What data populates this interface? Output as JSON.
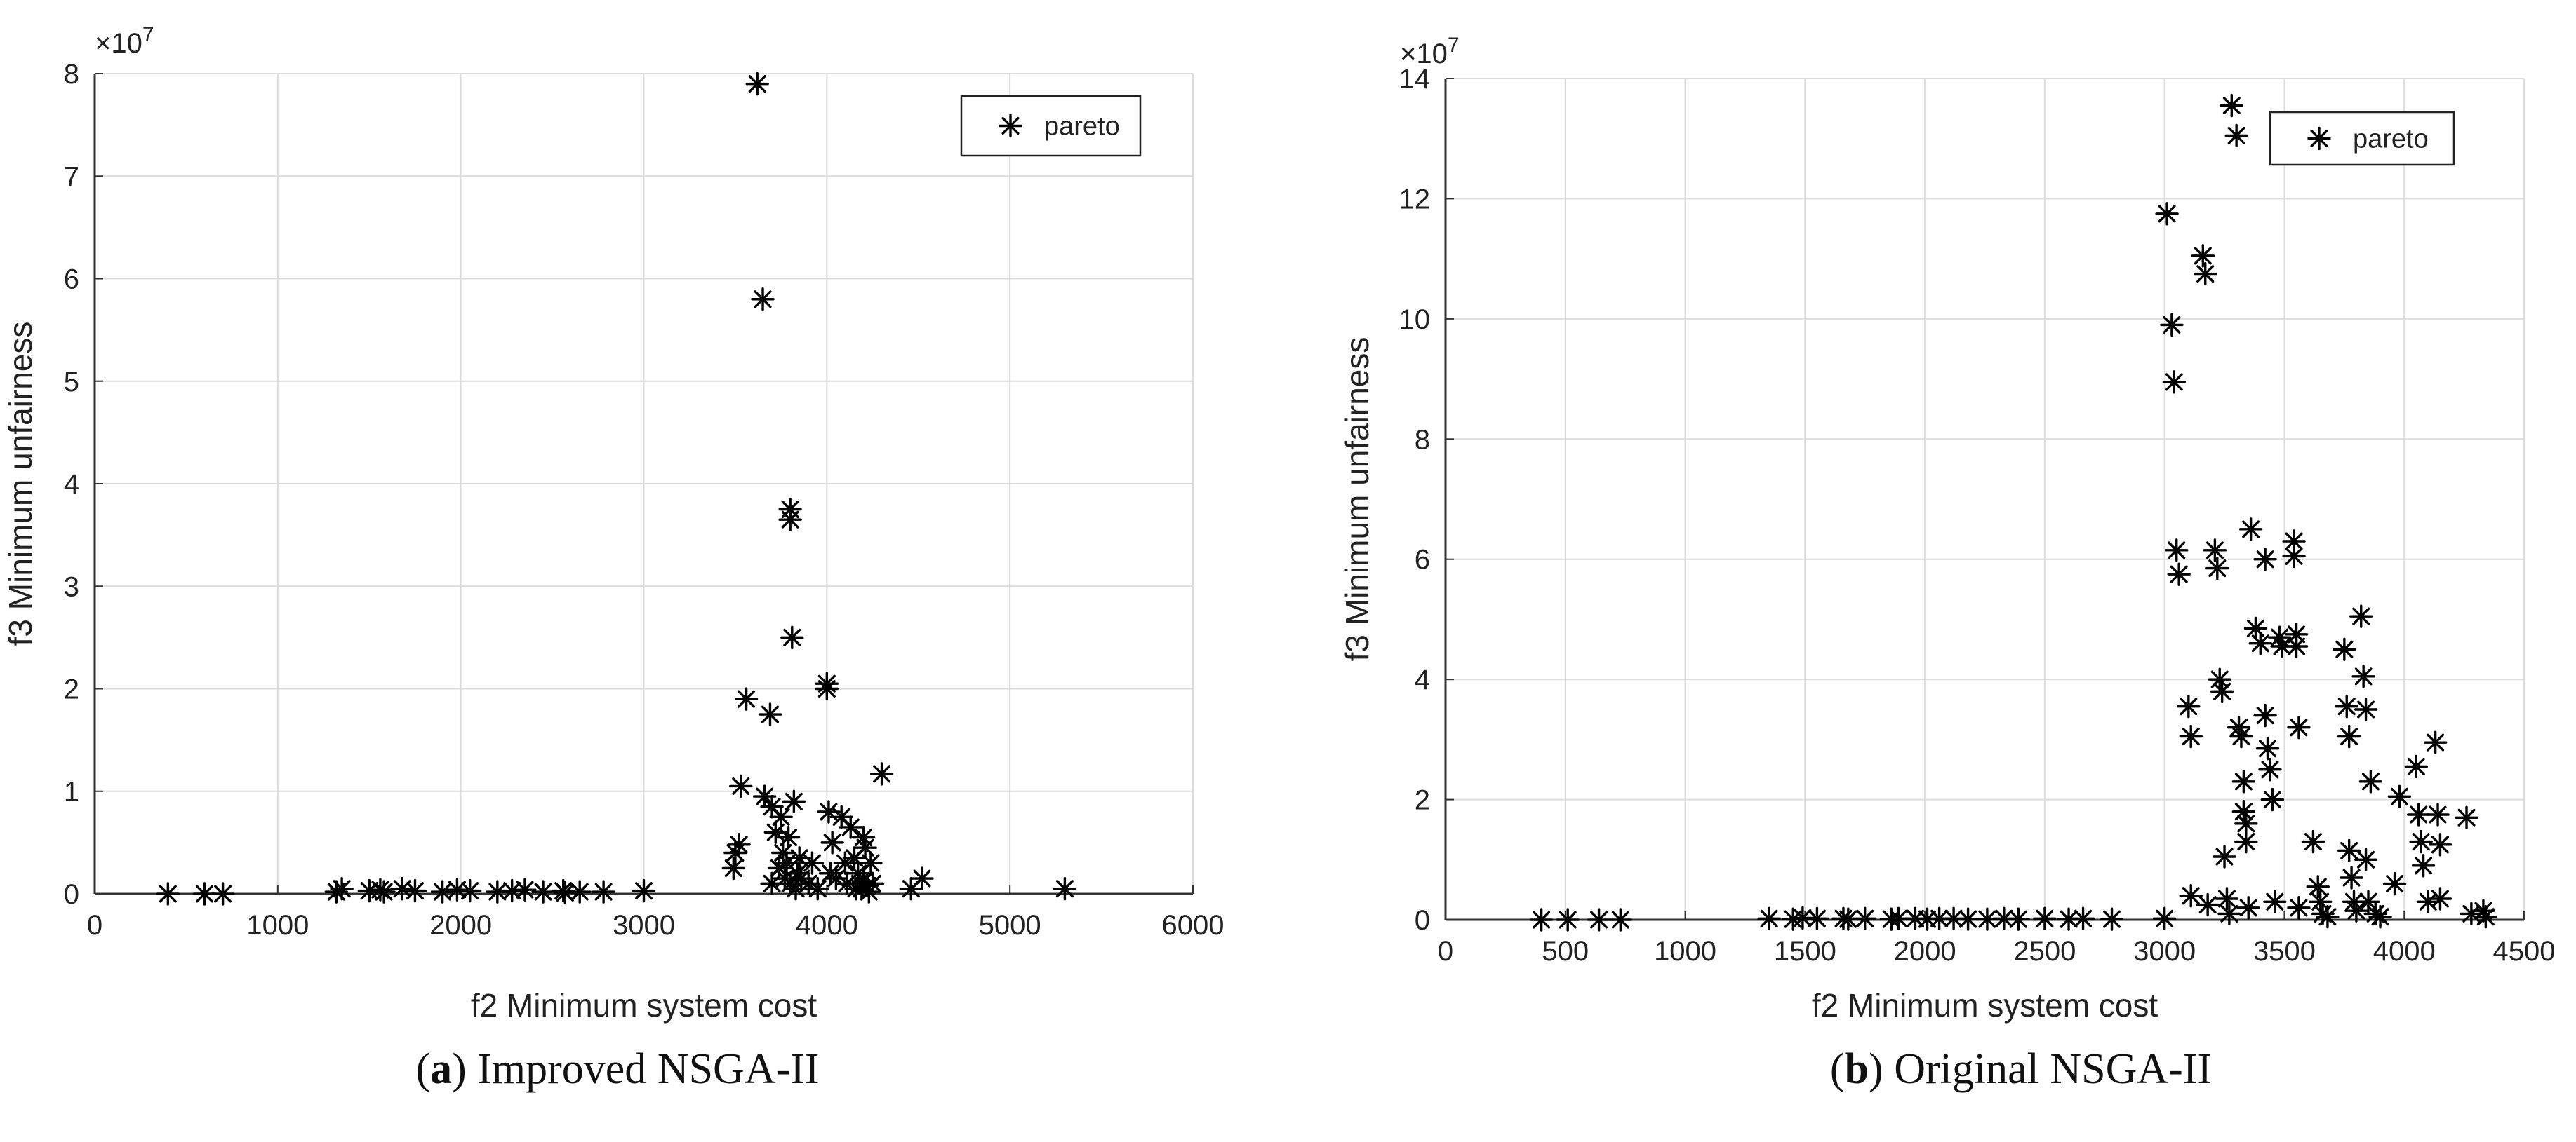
{
  "colors": {
    "grid": "#dcdcdc",
    "axis": "#333333",
    "marker": "#000000",
    "background": "#ffffff"
  },
  "captions": [
    {
      "letter": "a",
      "text": "Improved NSGA-II",
      "open": "(",
      "close": ")"
    },
    {
      "letter": "b",
      "text": "Original NSGA-II",
      "open": "(",
      "close": ")"
    }
  ],
  "chart_data": [
    {
      "type": "scatter",
      "title": "",
      "xlabel": "f2 Minimum system cost",
      "ylabel": "f3 Minimum unfairness",
      "y_multiplier_label": "×10",
      "y_multiplier_exponent": "7",
      "xlim": [
        0,
        6000
      ],
      "ylim": [
        0,
        8
      ],
      "xticks": [
        0,
        1000,
        2000,
        3000,
        4000,
        5000,
        6000
      ],
      "yticks": [
        0,
        1,
        2,
        3,
        4,
        5,
        6,
        7,
        8
      ],
      "grid": true,
      "legend": {
        "label": "pareto",
        "position": "top-right",
        "marker": "*"
      },
      "series": [
        {
          "name": "pareto",
          "marker": "*",
          "x": [
            400,
            600,
            700,
            1320,
            1350,
            1500,
            1560,
            1580,
            1680,
            1750,
            1900,
            1980,
            2050,
            2200,
            2280,
            2350,
            2450,
            2560,
            2570,
            2650,
            2780,
            3000,
            3490,
            3500,
            3520,
            3530,
            3560,
            3620,
            3650,
            3660,
            3690,
            3700,
            3700,
            3720,
            3740,
            3750,
            3760,
            3770,
            3780,
            3790,
            3800,
            3800,
            3800,
            3810,
            3820,
            3830,
            3840,
            3850,
            3860,
            3900,
            3920,
            3950,
            4000,
            4000,
            4010,
            4020,
            4030,
            4050,
            4080,
            4100,
            4110,
            4130,
            4150,
            4160,
            4170,
            4180,
            4190,
            4200,
            4200,
            4210,
            4220,
            4230,
            4240,
            4250,
            4300,
            4460,
            4520,
            5300
          ],
          "y": [
            0,
            0,
            0,
            0.02,
            0.05,
            0.03,
            0.04,
            0.02,
            0.05,
            0.03,
            0.02,
            0.04,
            0.03,
            0.02,
            0.03,
            0.04,
            0.02,
            0.03,
            0.01,
            0.02,
            0.02,
            0.03,
            0.25,
            0.4,
            0.48,
            1.05,
            1.9,
            7.9,
            5.8,
            0.95,
            1.75,
            0.85,
            0.1,
            0.6,
            0.25,
            0.75,
            0.4,
            0.15,
            0.3,
            0.55,
            3.75,
            3.65,
            0.1,
            2.5,
            0.9,
            0.05,
            0.2,
            0.35,
            0.15,
            0.1,
            0.3,
            0.05,
            2.05,
            2.0,
            0.8,
            0.2,
            0.5,
            0.15,
            0.75,
            0.3,
            0.1,
            0.65,
            0.35,
            0.05,
            0.2,
            0.1,
            0.05,
            0.55,
            0.12,
            0.45,
            0.08,
            0.02,
            0.3,
            0.1,
            1.17,
            0.05,
            0.15,
            0.05
          ]
        }
      ]
    },
    {
      "type": "scatter",
      "title": "",
      "xlabel": "f2 Minimum system cost",
      "ylabel": "f3 Minimum unfairness",
      "y_multiplier_label": "×10",
      "y_multiplier_exponent": "7",
      "xlim": [
        0,
        4500
      ],
      "ylim": [
        0,
        14
      ],
      "xticks": [
        0,
        500,
        1000,
        1500,
        2000,
        2500,
        3000,
        3500,
        4000,
        4500
      ],
      "yticks": [
        0,
        2,
        4,
        6,
        8,
        10,
        12,
        14
      ],
      "grid": true,
      "legend": {
        "label": "pareto",
        "position": "top-right",
        "marker": "*"
      },
      "series": [
        {
          "name": "pareto",
          "marker": "*",
          "x": [
            400,
            510,
            640,
            730,
            1350,
            1450,
            1490,
            1550,
            1660,
            1680,
            1750,
            1860,
            1890,
            1960,
            2010,
            2060,
            2120,
            2180,
            2260,
            2330,
            2390,
            2500,
            2600,
            2660,
            2780,
            3000,
            3010,
            3030,
            3040,
            3050,
            3060,
            3100,
            3110,
            3110,
            3160,
            3170,
            3180,
            3210,
            3220,
            3230,
            3240,
            3250,
            3260,
            3270,
            3280,
            3300,
            3310,
            3320,
            3330,
            3330,
            3340,
            3340,
            3350,
            3360,
            3380,
            3400,
            3420,
            3420,
            3430,
            3440,
            3450,
            3460,
            3480,
            3490,
            3540,
            3540,
            3550,
            3550,
            3560,
            3560,
            3620,
            3640,
            3650,
            3660,
            3680,
            3750,
            3760,
            3770,
            3770,
            3780,
            3790,
            3800,
            3820,
            3830,
            3840,
            3840,
            3850,
            3860,
            3880,
            3900,
            3960,
            3980,
            4050,
            4060,
            4070,
            4080,
            4100,
            4130,
            4140,
            4150,
            4150,
            4260,
            4280,
            4330,
            4340
          ],
          "y": [
            0,
            0,
            0,
            0,
            0.02,
            0.01,
            0.03,
            0.02,
            0.02,
            0.01,
            0.02,
            0.01,
            0.02,
            0.02,
            0.01,
            0.02,
            0.02,
            0.01,
            0.01,
            0.02,
            0.01,
            0.02,
            0.01,
            0.02,
            0.01,
            0.02,
            11.75,
            9.9,
            8.95,
            6.15,
            5.75,
            3.55,
            3.05,
            0.4,
            11.05,
            10.75,
            0.25,
            6.15,
            5.85,
            4.0,
            3.8,
            1.05,
            0.35,
            0.1,
            13.55,
            13.05,
            3.2,
            3.05,
            2.3,
            1.8,
            1.6,
            1.3,
            0.2,
            6.5,
            4.85,
            4.6,
            6.0,
            3.4,
            2.85,
            2.5,
            2.0,
            0.3,
            4.7,
            4.55,
            6.3,
            6.05,
            4.75,
            4.55,
            3.2,
            0.2,
            1.3,
            0.55,
            0.3,
            0.1,
            0.05,
            4.5,
            3.55,
            3.05,
            1.15,
            0.7,
            0.3,
            0.15,
            5.05,
            4.05,
            3.5,
            1.0,
            0.3,
            2.3,
            0.1,
            0.05,
            0.6,
            2.05,
            2.55,
            1.75,
            1.3,
            0.9,
            0.3,
            2.95,
            1.75,
            1.25,
            0.35,
            1.7,
            0.1,
            0.15,
            0.05
          ]
        }
      ]
    }
  ]
}
